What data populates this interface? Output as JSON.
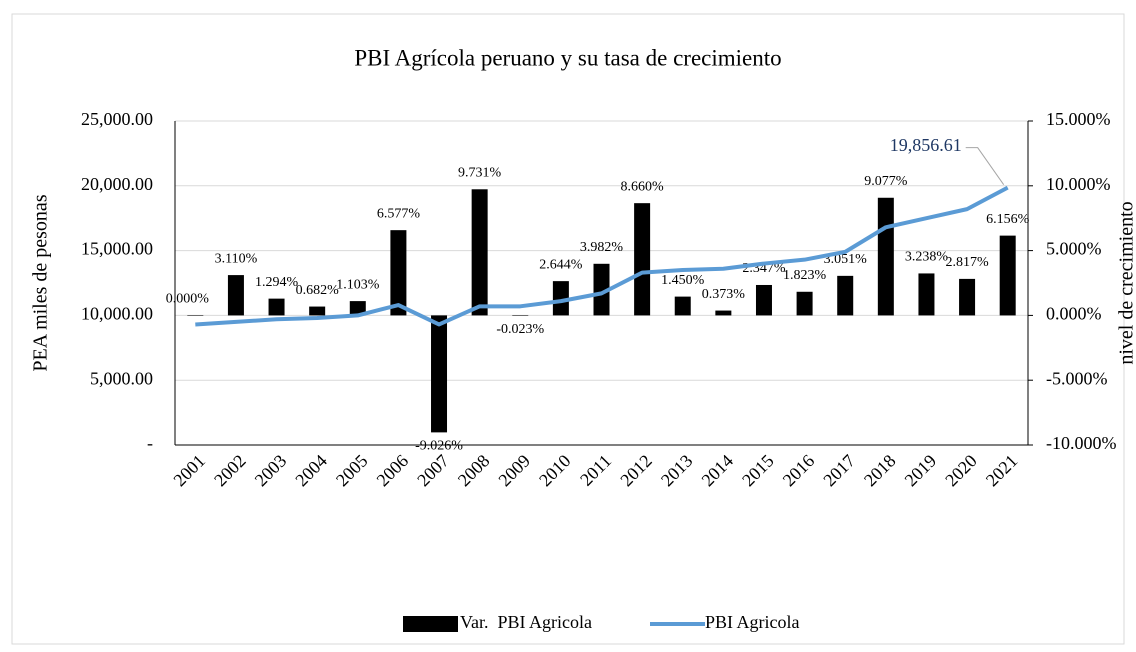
{
  "chart_data": {
    "type": "bar-line",
    "title": "PBI Agrícola peruano y su tasa de crecimiento",
    "y_label": "PEA miles de pesonas",
    "y2_label": "nivel de crecimiento",
    "categories": [
      "2001",
      "2002",
      "2003",
      "2004",
      "2005",
      "2006",
      "2007",
      "2008",
      "2009",
      "2010",
      "2011",
      "2012",
      "2013",
      "2014",
      "2015",
      "2016",
      "2017",
      "2018",
      "2019",
      "2020",
      "2021"
    ],
    "series": [
      {
        "name": "Var.  PBI Agricola",
        "type": "bar",
        "axis": "y2",
        "color": "#000000",
        "values": [
          0.0,
          3.11,
          1.294,
          0.682,
          1.103,
          6.577,
          -9.026,
          9.731,
          -0.023,
          2.644,
          3.982,
          8.66,
          1.45,
          0.373,
          2.347,
          1.823,
          3.051,
          9.077,
          3.238,
          2.817,
          6.156
        ],
        "value_labels": [
          "0.000%",
          "3.110%",
          "1.294%",
          "0.682%",
          "1.103%",
          "6.577%",
          "-9.026%",
          "9.731%",
          "-0.023%",
          "2.644%",
          "3.982%",
          "8.660%",
          "1.450%",
          "0.373%",
          "2.347%",
          "1.823%",
          "3.051%",
          "9.077%",
          "3.238%",
          "2.817%",
          "6.156%"
        ]
      },
      {
        "name": "PBI Agricola",
        "type": "line",
        "axis": "y",
        "color": "#5b9bd5",
        "values": [
          9300,
          9500,
          9700,
          9800,
          10000,
          10800,
          9300,
          10700,
          10700,
          11100,
          11700,
          13300,
          13500,
          13600,
          14000,
          14300,
          14900,
          16800,
          17500,
          18200,
          19856.61
        ],
        "value_labels": [
          null,
          null,
          null,
          null,
          null,
          null,
          null,
          null,
          null,
          null,
          null,
          null,
          null,
          null,
          null,
          null,
          null,
          null,
          null,
          null,
          "19,856.61"
        ]
      }
    ],
    "ylim": [
      0,
      25000
    ],
    "yticks": [
      {
        "value": 0,
        "label": "-"
      },
      {
        "value": 5000,
        "label": "5,000.00"
      },
      {
        "value": 10000,
        "label": "10,000.00"
      },
      {
        "value": 15000,
        "label": "15,000.00"
      },
      {
        "value": 20000,
        "label": "20,000.00"
      },
      {
        "value": 25000,
        "label": "25,000.00"
      }
    ],
    "y2lim": [
      -10,
      15
    ],
    "y2ticks": [
      {
        "value": -10,
        "label": "-10.000%"
      },
      {
        "value": -5,
        "label": "-5.000%"
      },
      {
        "value": 0,
        "label": "0.000%"
      },
      {
        "value": 5,
        "label": "5.000%"
      },
      {
        "value": 10,
        "label": "10.000%"
      },
      {
        "value": 15,
        "label": "15.000%"
      }
    ],
    "grid": true,
    "legend": "bottom"
  }
}
